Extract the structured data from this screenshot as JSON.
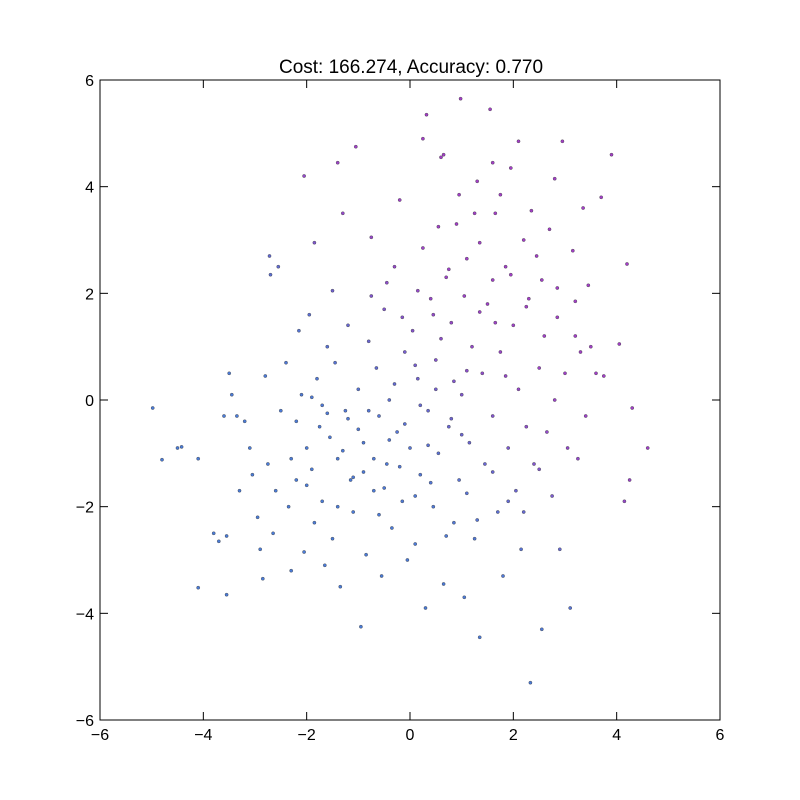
{
  "chart_data": {
    "type": "scatter",
    "title": "Cost: 166.274, Accuracy: 0.770",
    "xlabel": "",
    "ylabel": "",
    "xlim": [
      -6,
      6
    ],
    "ylim": [
      -6,
      6
    ],
    "xticks": [
      "−6",
      "−4",
      "−2",
      "0",
      "2",
      "4",
      "6"
    ],
    "yticks": [
      "−6",
      "−4",
      "−2",
      "0",
      "2",
      "4",
      "6"
    ],
    "grid": false,
    "legend": "none",
    "colors": {
      "class_low": "#4a7bd6",
      "class_high": "#a23ec6",
      "marker_edge": "#3a3a3a",
      "axes": "#000000"
    },
    "series": [
      {
        "points": [
          [
            -4.98,
            -0.15
          ],
          [
            -4.8,
            -1.12
          ],
          [
            -4.5,
            -0.9
          ],
          [
            -4.42,
            -0.88
          ],
          [
            -4.1,
            -1.1
          ],
          [
            -4.1,
            -3.52
          ],
          [
            -3.8,
            -2.5
          ],
          [
            -3.7,
            -2.65
          ],
          [
            -3.55,
            -3.65
          ],
          [
            -3.55,
            -2.55
          ],
          [
            -3.6,
            -0.3
          ],
          [
            -3.5,
            0.5
          ],
          [
            -3.45,
            0.1
          ],
          [
            -3.35,
            -0.3
          ],
          [
            -3.3,
            -1.7
          ],
          [
            -3.2,
            -0.4
          ],
          [
            -3.1,
            -0.9
          ],
          [
            -3.05,
            -1.4
          ],
          [
            -2.95,
            -2.2
          ],
          [
            -2.9,
            -2.8
          ],
          [
            -2.85,
            -3.35
          ],
          [
            -2.8,
            0.45
          ],
          [
            -2.75,
            -1.2
          ],
          [
            -2.72,
            2.7
          ],
          [
            -2.7,
            2.35
          ],
          [
            -2.65,
            -2.5
          ],
          [
            -2.55,
            2.5
          ],
          [
            -2.5,
            -0.2
          ],
          [
            -2.4,
            0.7
          ],
          [
            -2.35,
            -2.0
          ],
          [
            -2.3,
            -3.2
          ],
          [
            -2.2,
            -1.5
          ],
          [
            -2.15,
            1.3
          ],
          [
            -2.1,
            0.1
          ],
          [
            -2.05,
            -2.85
          ],
          [
            -2.0,
            -0.9
          ],
          [
            -1.95,
            1.6
          ],
          [
            -1.9,
            -1.3
          ],
          [
            -1.85,
            -2.3
          ],
          [
            -1.85,
            2.95
          ],
          [
            -1.8,
            0.4
          ],
          [
            -1.75,
            -0.5
          ],
          [
            -1.7,
            -1.9
          ],
          [
            -1.65,
            -3.1
          ],
          [
            -1.6,
            1.0
          ],
          [
            -1.55,
            -0.7
          ],
          [
            -1.5,
            -2.6
          ],
          [
            -1.5,
            2.05
          ],
          [
            -1.45,
            0.7
          ],
          [
            -1.4,
            -1.1
          ],
          [
            -1.35,
            -3.5
          ],
          [
            -1.3,
            3.5
          ],
          [
            -1.25,
            -0.2
          ],
          [
            -1.2,
            1.4
          ],
          [
            -1.15,
            -1.5
          ],
          [
            -1.1,
            -2.1
          ],
          [
            -1.05,
            4.75
          ],
          [
            -1.0,
            0.2
          ],
          [
            -0.95,
            -4.25
          ],
          [
            -0.9,
            -0.8
          ],
          [
            -0.85,
            -2.9
          ],
          [
            -0.8,
            1.1
          ],
          [
            -0.75,
            3.05
          ],
          [
            -0.7,
            -1.7
          ],
          [
            -0.65,
            0.6
          ],
          [
            -0.6,
            -0.3
          ],
          [
            -0.55,
            -3.3
          ],
          [
            -0.5,
            1.7
          ],
          [
            -0.45,
            -1.2
          ],
          [
            -0.4,
            0.0
          ],
          [
            -0.35,
            -2.4
          ],
          [
            -0.3,
            2.5
          ],
          [
            -0.25,
            -0.6
          ],
          [
            -0.2,
            3.75
          ],
          [
            -0.15,
            -1.9
          ],
          [
            -0.1,
            0.9
          ],
          [
            -0.05,
            -3.0
          ],
          [
            0.0,
            -0.9
          ],
          [
            0.05,
            1.3
          ],
          [
            0.1,
            -2.7
          ],
          [
            0.15,
            0.4
          ],
          [
            0.2,
            -1.4
          ],
          [
            0.25,
            2.85
          ],
          [
            0.3,
            -3.9
          ],
          [
            0.32,
            5.35
          ],
          [
            0.35,
            -0.2
          ],
          [
            0.4,
            1.9
          ],
          [
            0.45,
            -2.0
          ],
          [
            0.5,
            0.75
          ],
          [
            0.55,
            -1.0
          ],
          [
            0.6,
            4.55
          ],
          [
            0.65,
            -3.45
          ],
          [
            0.7,
            2.3
          ],
          [
            0.75,
            -0.5
          ],
          [
            0.8,
            1.45
          ],
          [
            0.85,
            -2.3
          ],
          [
            0.9,
            3.3
          ],
          [
            0.95,
            -1.5
          ],
          [
            0.98,
            5.65
          ],
          [
            1.0,
            0.1
          ],
          [
            1.05,
            -3.7
          ],
          [
            1.1,
            2.65
          ],
          [
            1.15,
            -0.8
          ],
          [
            1.2,
            1.0
          ],
          [
            1.25,
            -2.6
          ],
          [
            1.3,
            4.1
          ],
          [
            1.35,
            -4.45
          ],
          [
            1.4,
            0.5
          ],
          [
            1.45,
            -1.2
          ],
          [
            1.5,
            1.8
          ],
          [
            1.55,
            5.45
          ],
          [
            1.6,
            -0.3
          ],
          [
            1.65,
            3.5
          ],
          [
            1.7,
            -2.1
          ],
          [
            1.75,
            0.9
          ],
          [
            1.8,
            -3.3
          ],
          [
            1.85,
            2.5
          ],
          [
            1.9,
            -0.9
          ],
          [
            1.95,
            4.35
          ],
          [
            2.0,
            1.4
          ],
          [
            2.05,
            -1.7
          ],
          [
            2.1,
            0.2
          ],
          [
            2.15,
            -2.8
          ],
          [
            2.2,
            3.0
          ],
          [
            2.25,
            -0.5
          ],
          [
            2.3,
            1.9
          ],
          [
            2.33,
            -5.3
          ],
          [
            2.4,
            -1.2
          ],
          [
            2.45,
            2.7
          ],
          [
            2.5,
            0.6
          ],
          [
            2.55,
            -4.3
          ],
          [
            2.6,
            1.2
          ],
          [
            2.65,
            -0.6
          ],
          [
            2.7,
            3.2
          ],
          [
            2.75,
            -1.8
          ],
          [
            2.8,
            0.0
          ],
          [
            2.85,
            2.1
          ],
          [
            2.9,
            -2.8
          ],
          [
            2.95,
            4.85
          ],
          [
            3.0,
            0.5
          ],
          [
            3.05,
            -0.9
          ],
          [
            3.1,
            -3.9
          ],
          [
            3.15,
            2.8
          ],
          [
            3.2,
            1.2
          ],
          [
            3.25,
            -1.1
          ],
          [
            3.3,
            0.9
          ],
          [
            3.35,
            3.6
          ],
          [
            3.4,
            -0.3
          ],
          [
            3.5,
            1.0
          ],
          [
            3.6,
            0.5
          ],
          [
            3.7,
            3.8
          ],
          [
            3.75,
            0.45
          ],
          [
            3.9,
            4.6
          ],
          [
            4.05,
            1.05
          ],
          [
            4.15,
            -1.9
          ],
          [
            4.2,
            2.55
          ],
          [
            4.25,
            -1.5
          ],
          [
            4.3,
            -0.15
          ],
          [
            4.6,
            -0.9
          ],
          [
            -2.05,
            4.2
          ],
          [
            -1.4,
            4.45
          ],
          [
            0.25,
            4.9
          ],
          [
            0.65,
            4.6
          ],
          [
            1.6,
            4.45
          ],
          [
            2.1,
            4.85
          ],
          [
            2.8,
            4.15
          ],
          [
            3.45,
            2.15
          ],
          [
            3.2,
            1.85
          ],
          [
            -1.2,
            -0.35
          ],
          [
            -0.9,
            -1.35
          ],
          [
            -0.6,
            -2.15
          ],
          [
            -0.3,
            0.3
          ],
          [
            0.1,
            0.65
          ],
          [
            0.35,
            -0.85
          ],
          [
            0.6,
            1.15
          ],
          [
            0.85,
            0.35
          ],
          [
            1.1,
            -1.75
          ],
          [
            1.35,
            1.65
          ],
          [
            1.6,
            2.25
          ],
          [
            1.85,
            0.45
          ],
          [
            -2.2,
            -0.4
          ],
          [
            -1.9,
            0.05
          ],
          [
            -1.6,
            -0.25
          ],
          [
            -1.3,
            -0.95
          ],
          [
            -1.0,
            -0.55
          ],
          [
            -0.7,
            -1.1
          ],
          [
            -0.4,
            -0.75
          ],
          [
            -0.1,
            -0.45
          ],
          [
            0.2,
            -0.1
          ],
          [
            0.5,
            0.2
          ],
          [
            0.8,
            -0.35
          ],
          [
            1.1,
            0.55
          ],
          [
            -2.6,
            -1.7
          ],
          [
            -2.3,
            -1.1
          ],
          [
            -2.0,
            -1.6
          ],
          [
            -1.7,
            -0.1
          ],
          [
            -1.4,
            -2.0
          ],
          [
            -1.1,
            -1.45
          ],
          [
            -0.8,
            -0.2
          ],
          [
            -0.5,
            -1.65
          ],
          [
            -0.2,
            -1.25
          ],
          [
            0.1,
            -1.8
          ],
          [
            0.4,
            -1.55
          ],
          [
            0.7,
            -2.55
          ],
          [
            1.0,
            -0.65
          ],
          [
            1.3,
            -2.25
          ],
          [
            1.6,
            -1.35
          ],
          [
            1.9,
            -1.9
          ],
          [
            2.2,
            -2.1
          ],
          [
            2.5,
            -1.3
          ],
          [
            -0.15,
            1.55
          ],
          [
            0.15,
            2.05
          ],
          [
            0.45,
            1.6
          ],
          [
            0.75,
            2.45
          ],
          [
            1.05,
            1.95
          ],
          [
            1.35,
            2.95
          ],
          [
            1.65,
            1.45
          ],
          [
            1.95,
            2.35
          ],
          [
            2.25,
            1.75
          ],
          [
            2.55,
            2.25
          ],
          [
            2.85,
            1.55
          ],
          [
            0.95,
            3.85
          ],
          [
            1.25,
            3.5
          ],
          [
            0.55,
            3.25
          ],
          [
            1.75,
            3.85
          ],
          [
            2.35,
            3.55
          ],
          [
            -0.45,
            2.2
          ],
          [
            -0.75,
            1.95
          ]
        ]
      }
    ]
  }
}
